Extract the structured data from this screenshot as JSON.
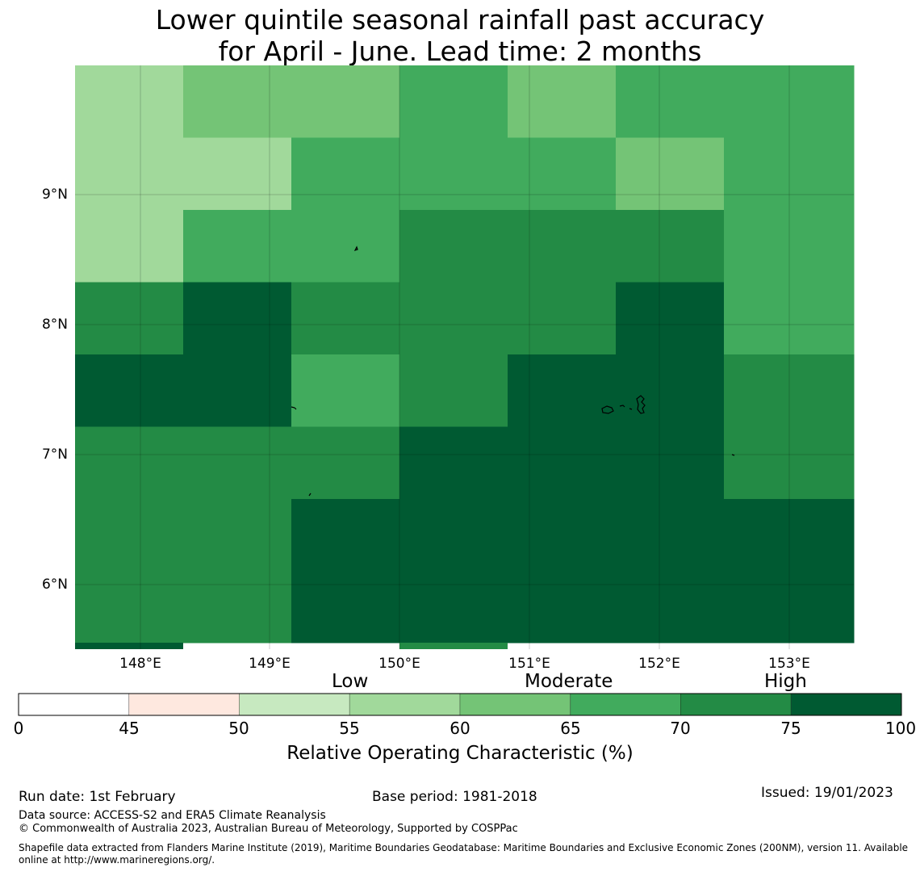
{
  "title": {
    "line1": "Lower quintile seasonal rainfall past accuracy",
    "line2": "for April - June. Lead time: 2 months"
  },
  "map": {
    "lat_labels": [
      "9°N",
      "8°N",
      "7°N",
      "6°N"
    ],
    "lon_labels": [
      "148°E",
      "149°E",
      "150°E",
      "151°E",
      "152°E",
      "153°E"
    ],
    "grid_cols": 7,
    "grid_rows": 8,
    "cell_values_pct": [
      [
        57,
        62,
        62,
        67,
        62,
        67,
        67
      ],
      [
        57,
        57,
        67,
        67,
        67,
        62,
        67
      ],
      [
        57,
        67,
        67,
        72,
        72,
        72,
        67
      ],
      [
        72,
        77,
        72,
        72,
        72,
        77,
        67
      ],
      [
        77,
        77,
        67,
        72,
        77,
        77,
        72
      ],
      [
        72,
        72,
        72,
        77,
        77,
        77,
        72
      ],
      [
        72,
        72,
        77,
        77,
        77,
        77,
        77
      ],
      [
        72,
        72,
        77,
        77,
        77,
        77,
        77
      ]
    ]
  },
  "legend": {
    "categories": [
      "Low",
      "Moderate",
      "High"
    ],
    "bins": [
      0,
      45,
      50,
      55,
      60,
      65,
      70,
      75,
      100
    ],
    "tick_labels": [
      "0",
      "45",
      "50",
      "55",
      "60",
      "65",
      "70",
      "75",
      "100"
    ],
    "colors": [
      "#ffffff",
      "#fee8df",
      "#c7e9c0",
      "#a1d99b",
      "#74c476",
      "#41ab5d",
      "#238b45",
      "#005a32"
    ],
    "axis_label": "Relative Operating Characteristic (%)"
  },
  "footer": {
    "run_date": "Run date: 1st February",
    "base_period": "Base period: 1981-2018",
    "issued": "Issued: 19/01/2023",
    "data_source": "Data source: ACCESS-S2 and ERA5 Climate Reanalysis",
    "copyright": "© Commonwealth of Australia 2023, Australian Bureau of Meteorology, Supported by COSPPac",
    "shapefile_line1": "Shapefile data extracted from Flanders Marine Institute (2019), Maritime Boundaries Geodatabase: Maritime Boundaries and Exclusive Economic Zones (200NM), version 11. Available",
    "shapefile_line2": "online at http://www.marineregions.org/."
  }
}
